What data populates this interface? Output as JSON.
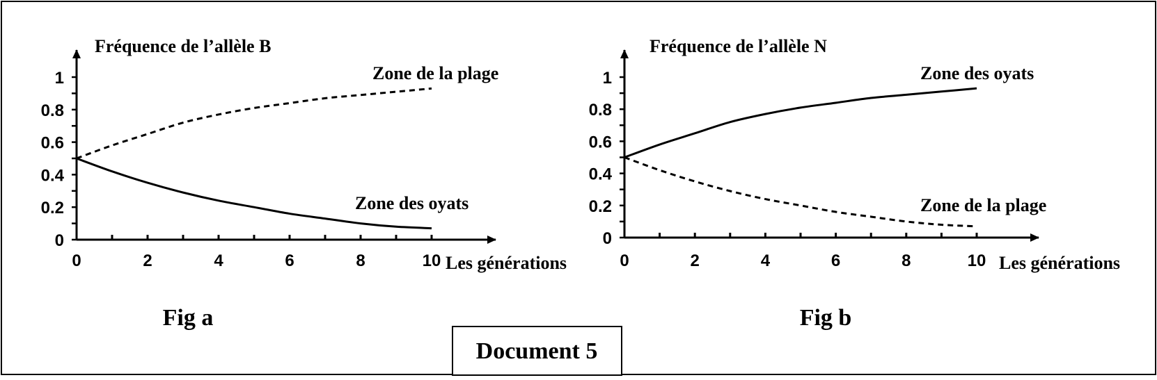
{
  "document_label": "Document 5",
  "chart_data": [
    {
      "type": "line",
      "figure_label": "Fig a",
      "title": "",
      "ylabel": "Fréquence de l’allèle B",
      "xlabel": "Les générations",
      "xlim": [
        0,
        10
      ],
      "ylim": [
        0,
        1
      ],
      "x_ticks": [
        "0",
        "2",
        "4",
        "6",
        "8",
        "10"
      ],
      "y_ticks": [
        "0",
        "0.2",
        "0.4",
        "0.6",
        "0.8",
        "1"
      ],
      "grid": false,
      "legend": "none",
      "series": [
        {
          "name": "Zone de la plage",
          "style": "dashed",
          "color": "#000000",
          "x": [
            0,
            1,
            2,
            3,
            4,
            5,
            6,
            7,
            8,
            9,
            10
          ],
          "y": [
            0.5,
            0.58,
            0.65,
            0.72,
            0.77,
            0.81,
            0.84,
            0.87,
            0.89,
            0.91,
            0.93
          ]
        },
        {
          "name": "Zone des oyats",
          "style": "solid",
          "color": "#000000",
          "x": [
            0,
            1,
            2,
            3,
            4,
            5,
            6,
            7,
            8,
            9,
            10
          ],
          "y": [
            0.5,
            0.42,
            0.35,
            0.29,
            0.24,
            0.2,
            0.16,
            0.13,
            0.1,
            0.08,
            0.07
          ]
        }
      ]
    },
    {
      "type": "line",
      "figure_label": "Fig b",
      "title": "",
      "ylabel": "Fréquence de l’allèle N",
      "xlabel": "Les générations",
      "xlim": [
        0,
        10
      ],
      "ylim": [
        0,
        1
      ],
      "x_ticks": [
        "0",
        "2",
        "4",
        "6",
        "8",
        "10"
      ],
      "y_ticks": [
        "0",
        "0.2",
        "0.4",
        "0.6",
        "0.8",
        "1"
      ],
      "grid": false,
      "legend": "none",
      "series": [
        {
          "name": "Zone des oyats",
          "style": "solid",
          "color": "#000000",
          "x": [
            0,
            1,
            2,
            3,
            4,
            5,
            6,
            7,
            8,
            9,
            10
          ],
          "y": [
            0.5,
            0.58,
            0.65,
            0.72,
            0.77,
            0.81,
            0.84,
            0.87,
            0.89,
            0.91,
            0.93
          ]
        },
        {
          "name": "Zone de la plage",
          "style": "dashed",
          "color": "#000000",
          "x": [
            0,
            1,
            2,
            3,
            4,
            5,
            6,
            7,
            8,
            9,
            10
          ],
          "y": [
            0.5,
            0.42,
            0.35,
            0.29,
            0.24,
            0.2,
            0.16,
            0.13,
            0.1,
            0.08,
            0.07
          ]
        }
      ]
    }
  ]
}
